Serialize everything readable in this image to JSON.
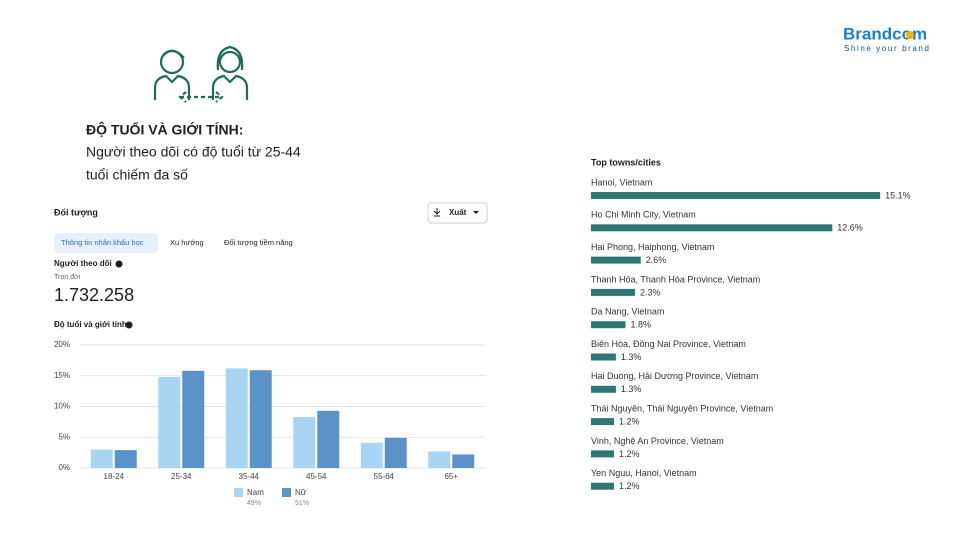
{
  "brand": {
    "name": "Brandcom",
    "tagline": "Shine your brand"
  },
  "heading": "ĐỘ TUỔI VÀ GIỚI TÍNH:",
  "subtitle_lines": [
    "Người theo dõi có độ tuổi từ 25-44",
    "tuổi chiếm đa số"
  ],
  "panel": {
    "title": "Đối tượng",
    "export_button": "Xuất",
    "tabs": [
      "Thông tin nhân khẩu học",
      "Xu hướng",
      "Đối tượng tiềm năng"
    ],
    "followers_label": "Người theo dõi",
    "period": "Trọn đời",
    "followers_count": "1.732.258"
  },
  "chart_data": [
    {
      "type": "bar",
      "title": "Độ tuổi và giới tính",
      "categories": [
        "18-24",
        "25-34",
        "35-44",
        "45-54",
        "55-64",
        "65+"
      ],
      "series": [
        {
          "name": "Nam",
          "share": "49%",
          "color": "#a9d5f5",
          "values": [
            3.0,
            14.8,
            16.2,
            8.3,
            4.1,
            2.7
          ]
        },
        {
          "name": "Nữ",
          "share": "51%",
          "color": "#5b93c9",
          "values": [
            2.9,
            15.8,
            15.9,
            9.3,
            4.9,
            2.2
          ]
        }
      ],
      "ylim": [
        0,
        20
      ],
      "yticks": [
        {
          "value": 0,
          "label": "0%"
        },
        {
          "value": 5,
          "label": "5%"
        },
        {
          "value": 10,
          "label": "10%"
        },
        {
          "value": 15,
          "label": "15%"
        },
        {
          "value": 20,
          "label": "20%"
        }
      ],
      "grid": true
    },
    {
      "type": "hbar",
      "title": "Top towns/cities",
      "categories": [
        "Hanoi, Vietnam",
        "Ho Chi Minh City, Vietnam",
        "Hai Phong, Haiphong, Vietnam",
        "Thanh Hóa, Thanh Hóa Province, Vietnam",
        "Da Nang, Vietnam",
        "Biên Hòa, Đồng Nai Province, Vietnam",
        "Hai Duong, Hải Dương Province, Vietnam",
        "Thái Nguyên, Thái Nguyên Province, Vietnam",
        "Vinh, Nghệ An Province, Vietnam",
        "Yen Nguu, Hanoi, Vietnam"
      ],
      "values": [
        15.1,
        12.6,
        2.6,
        2.3,
        1.8,
        1.3,
        1.3,
        1.2,
        1.2,
        1.2
      ],
      "value_labels": [
        "15.1%",
        "12.6%",
        "2.6%",
        "2.3%",
        "1.8%",
        "1.3%",
        "1.3%",
        "1.2%",
        "1.2%",
        "1.2%"
      ],
      "color": "#2e7774"
    }
  ]
}
